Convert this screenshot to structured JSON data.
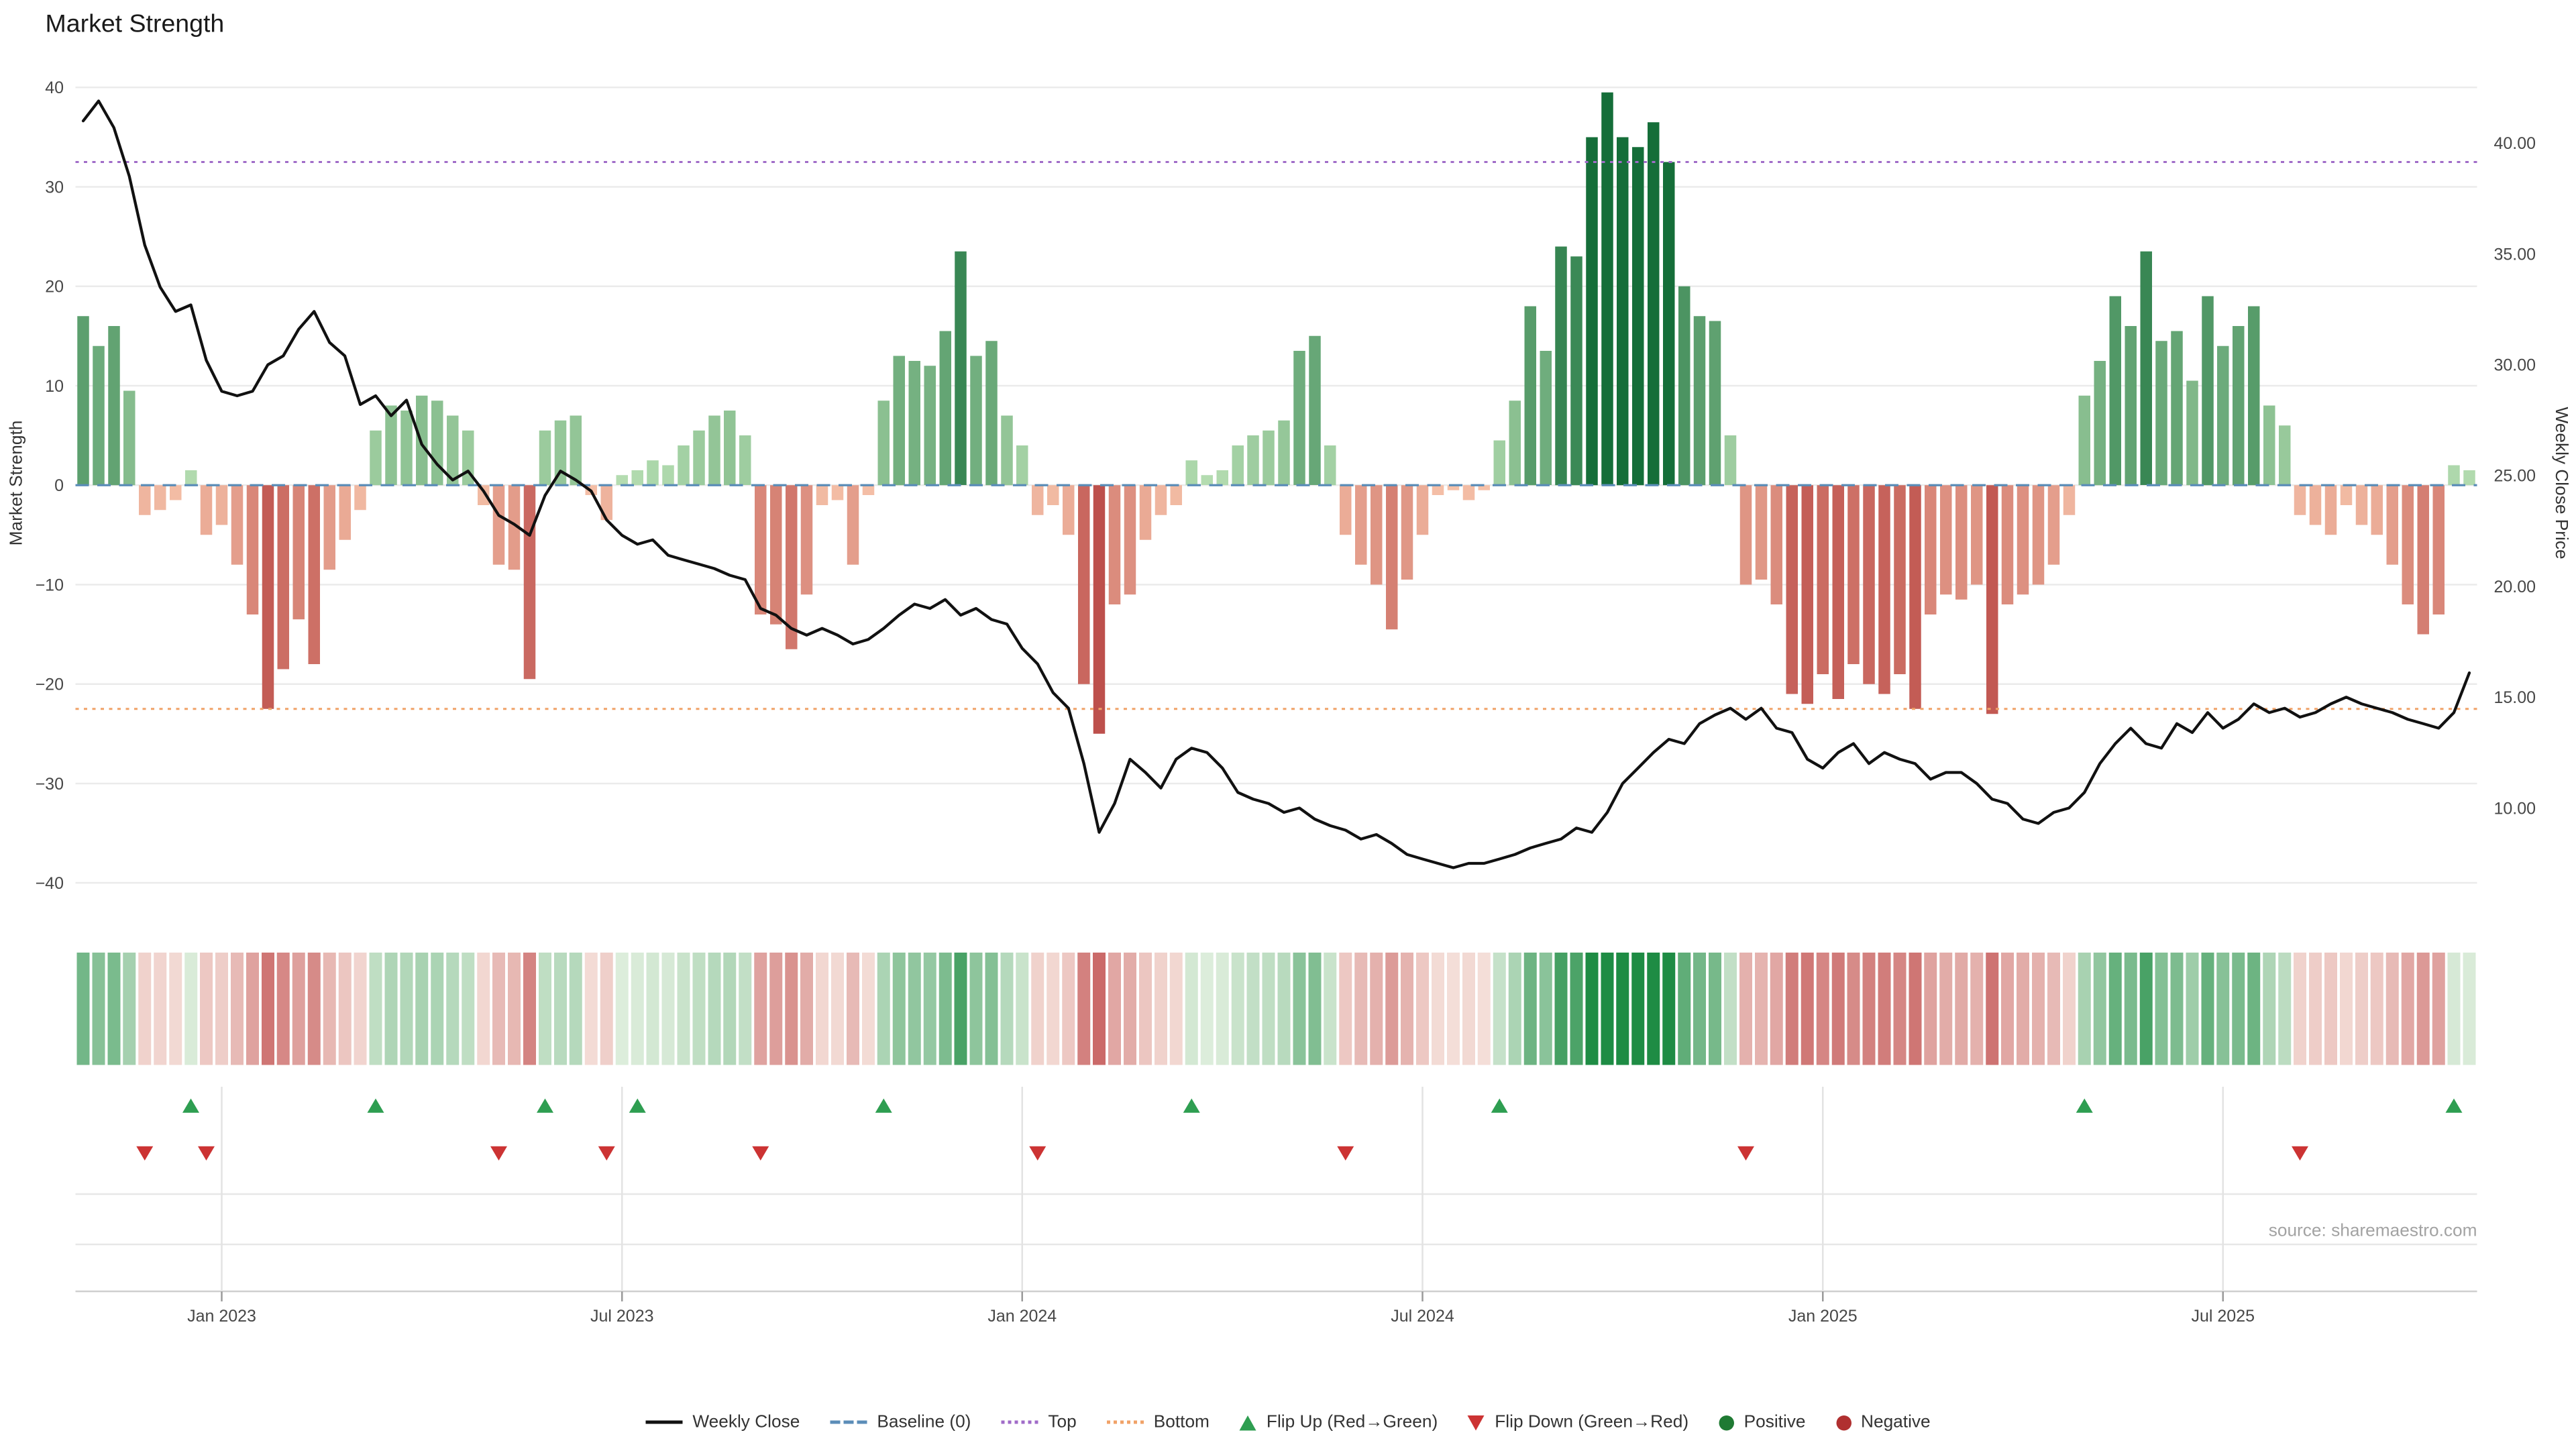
{
  "title": "Market Strength",
  "source": "source: sharemaestro.com",
  "chart_data": {
    "type": "bar",
    "title": "Market Strength",
    "x_tick_labels": [
      "Jan 2023",
      "Jul 2023",
      "Jan 2024",
      "Jul 2024",
      "Jan 2025",
      "Jul 2025"
    ],
    "x_tick_weeks": [
      9,
      35,
      61,
      87,
      113,
      139
    ],
    "left_axis": {
      "label": "Market Strength",
      "range": [
        -40.6,
        41.2
      ],
      "tick_values": [
        -40,
        -30,
        -20,
        -10,
        0,
        10,
        20,
        30,
        40
      ],
      "tick_labels": [
        "−40",
        "−30",
        "−20",
        "−10",
        "0",
        "10",
        "20",
        "30",
        "40"
      ]
    },
    "right_axis": {
      "label": "Weekly Close Price",
      "range": [
        6.35,
        43.05
      ],
      "tick_values": [
        10,
        15,
        20,
        25,
        30,
        35,
        40
      ],
      "tick_labels": [
        "10.00",
        "15.00",
        "20.00",
        "25.00",
        "30.00",
        "35.00",
        "40.00"
      ]
    },
    "baseline": {
      "value": 0,
      "label": "Baseline (0)",
      "color": "#5b8db8"
    },
    "top_threshold": {
      "value": 32.5,
      "label": "Top",
      "color": "#a06cc8"
    },
    "bottom_threshold": {
      "value": -22.5,
      "label": "Bottom",
      "color": "#f0a268"
    },
    "bar_series": {
      "name": "Market Strength",
      "values": [
        17,
        14,
        16,
        9.5,
        -3,
        -2.5,
        -1.5,
        1.5,
        -5,
        -4,
        -8,
        -13,
        -22.5,
        -18.5,
        -13.5,
        -18,
        -8.5,
        -5.5,
        -2.5,
        5.5,
        8,
        7.5,
        9,
        8.5,
        7,
        5.5,
        -2,
        -8,
        -8.5,
        -19.5,
        5.5,
        6.5,
        7,
        -1,
        -3.5,
        1,
        1.5,
        2.5,
        2,
        4,
        5.5,
        7,
        7.5,
        5,
        -13,
        -14,
        -16.5,
        -11,
        -2,
        -1.5,
        -8,
        -1,
        8.5,
        13,
        12.5,
        12,
        15.5,
        23.5,
        13,
        14.5,
        7,
        4,
        -3,
        -2,
        -5,
        -20,
        -25,
        -12,
        -11,
        -5.5,
        -3,
        -2,
        2.5,
        1,
        1.5,
        4,
        5,
        5.5,
        6.5,
        13.5,
        15,
        4,
        -5,
        -8,
        -10,
        -14.5,
        -9.5,
        -5,
        -1,
        -0.5,
        -1.5,
        -0.5,
        4.5,
        8.5,
        18,
        13.5,
        24,
        23,
        35,
        39.5,
        35,
        34,
        36.5,
        32.5,
        20,
        17,
        16.5,
        5,
        -10,
        -9.5,
        -12,
        -21,
        -22,
        -19,
        -21.5,
        -18,
        -20,
        -21,
        -19,
        -22.5,
        -13,
        -11,
        -11.5,
        -10,
        -23,
        -12,
        -11,
        -10,
        -8,
        -3,
        9,
        12.5,
        19,
        16,
        23.5,
        14.5,
        15.5,
        10.5,
        19,
        14,
        16,
        18,
        8,
        6,
        -3,
        -4,
        -5,
        -2,
        -4,
        -5,
        -8,
        -12,
        -15,
        -13,
        2,
        1.5
      ]
    },
    "line_series": {
      "name": "Weekly Close",
      "axis": "right",
      "color": "#111111",
      "values": [
        41.0,
        41.9,
        40.7,
        38.5,
        35.4,
        33.5,
        32.4,
        32.7,
        30.2,
        28.8,
        28.6,
        28.8,
        30.0,
        30.4,
        31.6,
        32.4,
        31.0,
        30.4,
        28.2,
        28.6,
        27.7,
        28.4,
        26.4,
        25.5,
        24.8,
        25.2,
        24.3,
        23.2,
        22.8,
        22.3,
        24.1,
        25.2,
        24.8,
        24.3,
        23.0,
        22.3,
        21.9,
        22.1,
        21.4,
        21.2,
        21.0,
        20.8,
        20.5,
        20.3,
        19.0,
        18.7,
        18.1,
        17.8,
        18.1,
        17.8,
        17.4,
        17.6,
        18.1,
        18.7,
        19.2,
        19.0,
        19.4,
        18.7,
        19.0,
        18.5,
        18.3,
        17.2,
        16.5,
        15.2,
        14.5,
        12.0,
        8.9,
        10.2,
        12.2,
        11.6,
        10.9,
        12.2,
        12.7,
        12.5,
        11.8,
        10.7,
        10.4,
        10.2,
        9.8,
        10.0,
        9.5,
        9.2,
        9.0,
        8.6,
        8.8,
        8.4,
        7.9,
        7.7,
        7.5,
        7.3,
        7.5,
        7.5,
        7.7,
        7.9,
        8.2,
        8.4,
        8.6,
        9.1,
        8.9,
        9.8,
        11.1,
        11.8,
        12.5,
        13.1,
        12.9,
        13.8,
        14.2,
        14.5,
        14.0,
        14.5,
        13.6,
        13.4,
        12.2,
        11.8,
        12.5,
        12.9,
        12.0,
        12.5,
        12.2,
        12.0,
        11.3,
        11.6,
        11.6,
        11.1,
        10.4,
        10.2,
        9.5,
        9.3,
        9.8,
        10.0,
        10.7,
        12.0,
        12.9,
        13.6,
        12.9,
        12.7,
        13.8,
        13.4,
        14.3,
        13.6,
        14.0,
        14.7,
        14.3,
        14.5,
        14.1,
        14.3,
        14.7,
        15.0,
        14.7,
        14.5,
        14.3,
        14.0,
        13.8,
        13.6,
        14.3,
        16.1
      ]
    },
    "flip_up_weeks": [
      7,
      19,
      30,
      36,
      52,
      72,
      92,
      130,
      154
    ],
    "flip_down_weeks": [
      4,
      8,
      27,
      34,
      44,
      62,
      82,
      108,
      144
    ],
    "colors": {
      "positive_dark": "#156e39",
      "positive_light": "#b9e0b4",
      "negative_dark": "#b23939",
      "negative_light": "#f6c3aa",
      "flip_up": "#2e9e51",
      "flip_down": "#cc3333"
    },
    "legend": [
      {
        "label": "Weekly Close",
        "marker": "line",
        "color": "#111111"
      },
      {
        "label": "Baseline (0)",
        "marker": "dashed-line",
        "color": "#5b8db8"
      },
      {
        "label": "Top",
        "marker": "dotted-line",
        "color": "#a06cc8"
      },
      {
        "label": "Bottom",
        "marker": "dotted-line",
        "color": "#f0a268"
      },
      {
        "label": "Flip Up (Red→Green)",
        "marker": "triangle-up",
        "color": "#2e9e51"
      },
      {
        "label": "Flip Down (Green→Red)",
        "marker": "triangle-down",
        "color": "#cc3333"
      },
      {
        "label": "Positive",
        "marker": "circle",
        "color": "#1f7a33"
      },
      {
        "label": "Negative",
        "marker": "circle",
        "color": "#b03030"
      }
    ]
  }
}
